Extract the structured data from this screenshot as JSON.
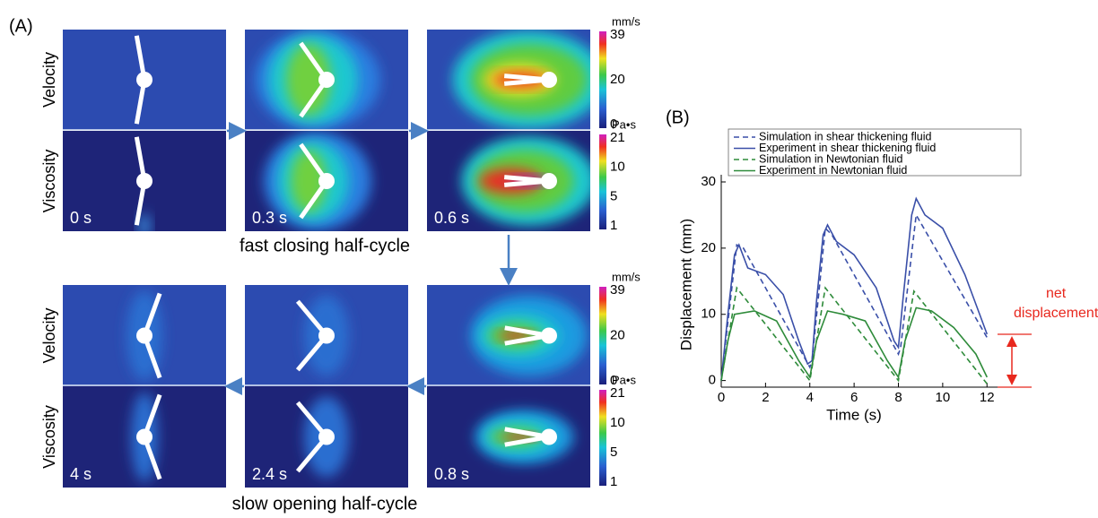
{
  "panel_a": {
    "label": "(A)",
    "row_labels": [
      "Velocity",
      "Viscosity"
    ],
    "top_times": [
      "0 s",
      "0.3 s",
      "0.6 s"
    ],
    "bottom_times": [
      "4 s",
      "2.4 s",
      "0.8 s"
    ],
    "top_caption": "fast closing half-cycle",
    "bottom_caption": "slow opening half-cycle",
    "velocity_unit": "mm/s",
    "velocity_ticks": [
      "39",
      "20",
      "0"
    ],
    "viscosity_unit": "Pa•s",
    "viscosity_ticks": [
      "21",
      "10",
      "5",
      "1"
    ]
  },
  "chart_data": {
    "type": "line",
    "panel_label": "(B)",
    "x_label": "Time (s)",
    "y_label": "Displacement (mm)",
    "xlim": [
      0,
      12.8
    ],
    "ylim": [
      -1,
      30
    ],
    "xticks": [
      0,
      2,
      4,
      6,
      8,
      10,
      12
    ],
    "yticks": [
      0,
      10,
      20,
      30
    ],
    "annotation": [
      "net",
      "displacement"
    ],
    "annotation_color": "#e8281e",
    "series": [
      {
        "name": "Simulation in shear thickening fluid",
        "color": "#3a4fa8",
        "dashed": true,
        "x": [
          0,
          0.7,
          1,
          4,
          4.1,
          4.7,
          5,
          8,
          8.1,
          8.8,
          12
        ],
        "values": [
          0,
          20.5,
          20,
          2,
          3,
          23,
          22,
          4,
          5,
          25,
          6.5
        ]
      },
      {
        "name": "Experiment in shear thickening fluid",
        "color": "#3a4fa8",
        "dashed": false,
        "x": [
          0,
          0.3,
          0.6,
          0.8,
          1.2,
          2,
          2.8,
          3.5,
          3.9,
          4.1,
          4.3,
          4.6,
          4.8,
          5.2,
          6,
          7,
          7.8,
          8,
          8.2,
          8.6,
          8.8,
          9.2,
          10,
          11,
          12
        ],
        "values": [
          0,
          10,
          19,
          20.5,
          17,
          16,
          13,
          6,
          2.5,
          3,
          12,
          22,
          23.5,
          21,
          19,
          14,
          6,
          5,
          12,
          25,
          27.5,
          25,
          23,
          16,
          7
        ]
      },
      {
        "name": "Simulation in Newtonian fluid",
        "color": "#2e8b3a",
        "dashed": true,
        "x": [
          0,
          0.7,
          4,
          4.7,
          8,
          8.7,
          12
        ],
        "values": [
          0,
          14,
          0,
          14,
          0,
          13.5,
          -0.5
        ]
      },
      {
        "name": "Experiment in Newtonian fluid",
        "color": "#2e8b3a",
        "dashed": false,
        "x": [
          0,
          0.3,
          0.6,
          1.5,
          2.5,
          3.5,
          4,
          4.3,
          4.8,
          5.5,
          6.5,
          7.5,
          8,
          8.3,
          8.8,
          9.5,
          10.5,
          11.5,
          12
        ],
        "values": [
          0,
          6,
          10,
          10.5,
          9,
          3,
          0.5,
          6,
          10.5,
          10,
          9,
          3,
          0.5,
          6,
          11,
          10.5,
          8,
          4,
          0.5
        ]
      }
    ]
  }
}
